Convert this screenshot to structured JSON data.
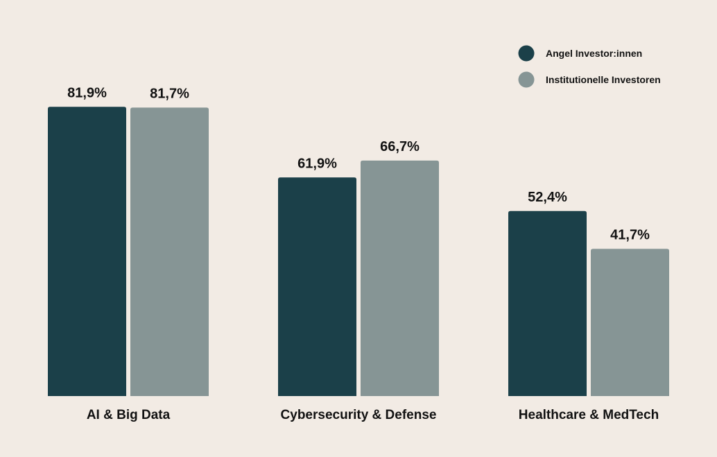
{
  "colors": {
    "background": "#f2ebe4",
    "angel": "#1b4049",
    "institutional": "#869595",
    "text": "#111111"
  },
  "chart_data": {
    "type": "bar",
    "title": "",
    "xlabel": "",
    "ylabel": "",
    "ylim": [
      0,
      100
    ],
    "grid": false,
    "legend_position": "top-right",
    "categories": [
      "AI & Big Data",
      "Cybersecurity & Defense",
      "Healthcare & MedTech"
    ],
    "series": [
      {
        "name": "Angel Investor:innen",
        "color": "#1b4049",
        "values": [
          81.9,
          61.9,
          52.4
        ],
        "labels": [
          "81,9%",
          "61,9%",
          "52,4%"
        ]
      },
      {
        "name": "Institutionelle Investoren",
        "color": "#869595",
        "values": [
          81.7,
          66.7,
          41.7
        ],
        "labels": [
          "81,7%",
          "66,7%",
          "41,7%"
        ]
      }
    ]
  }
}
